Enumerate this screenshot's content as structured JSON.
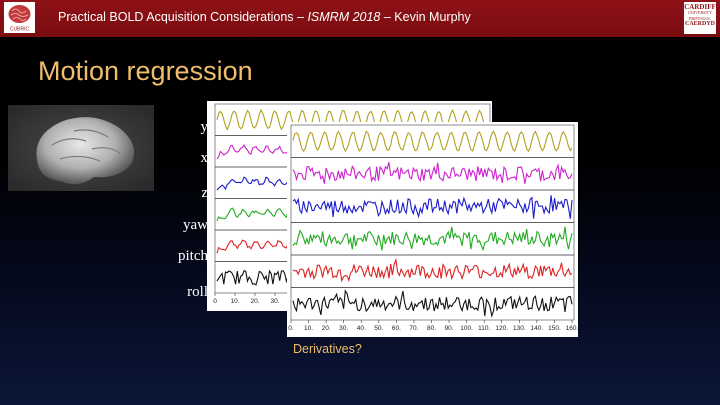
{
  "header": {
    "lead": "Practical BOLD Acquisition Considerations",
    "dash1": " – ",
    "venue": "ISMRM 2018",
    "dash2": " – ",
    "author": "Kevin Murphy",
    "left_logo_text": "CUBRIC",
    "right_logo": [
      "CARDIFF",
      "UNIVERSITY",
      "PRIFYSGOL",
      "CAERDYD"
    ]
  },
  "title": "Motion regression",
  "motion_labels": [
    "y",
    "x",
    "z",
    "yaw",
    "pitch",
    "roll"
  ],
  "trace_colors": [
    "#b0a020",
    "#cc22cc",
    "#1b1bcc",
    "#22aa22",
    "#dd2222",
    "#111111"
  ],
  "front_axis_ticks": [
    "0.",
    "10.",
    "20.",
    "30.",
    "40.",
    "50.",
    "60.",
    "70.",
    "80.",
    "90.",
    "100.",
    "110.",
    "120.",
    "130.",
    "140.",
    "150.",
    "160."
  ],
  "back_axis_ticks": [
    "0",
    "10.",
    "20.",
    "30.",
    "40."
  ],
  "caption": "Derivatives?"
}
